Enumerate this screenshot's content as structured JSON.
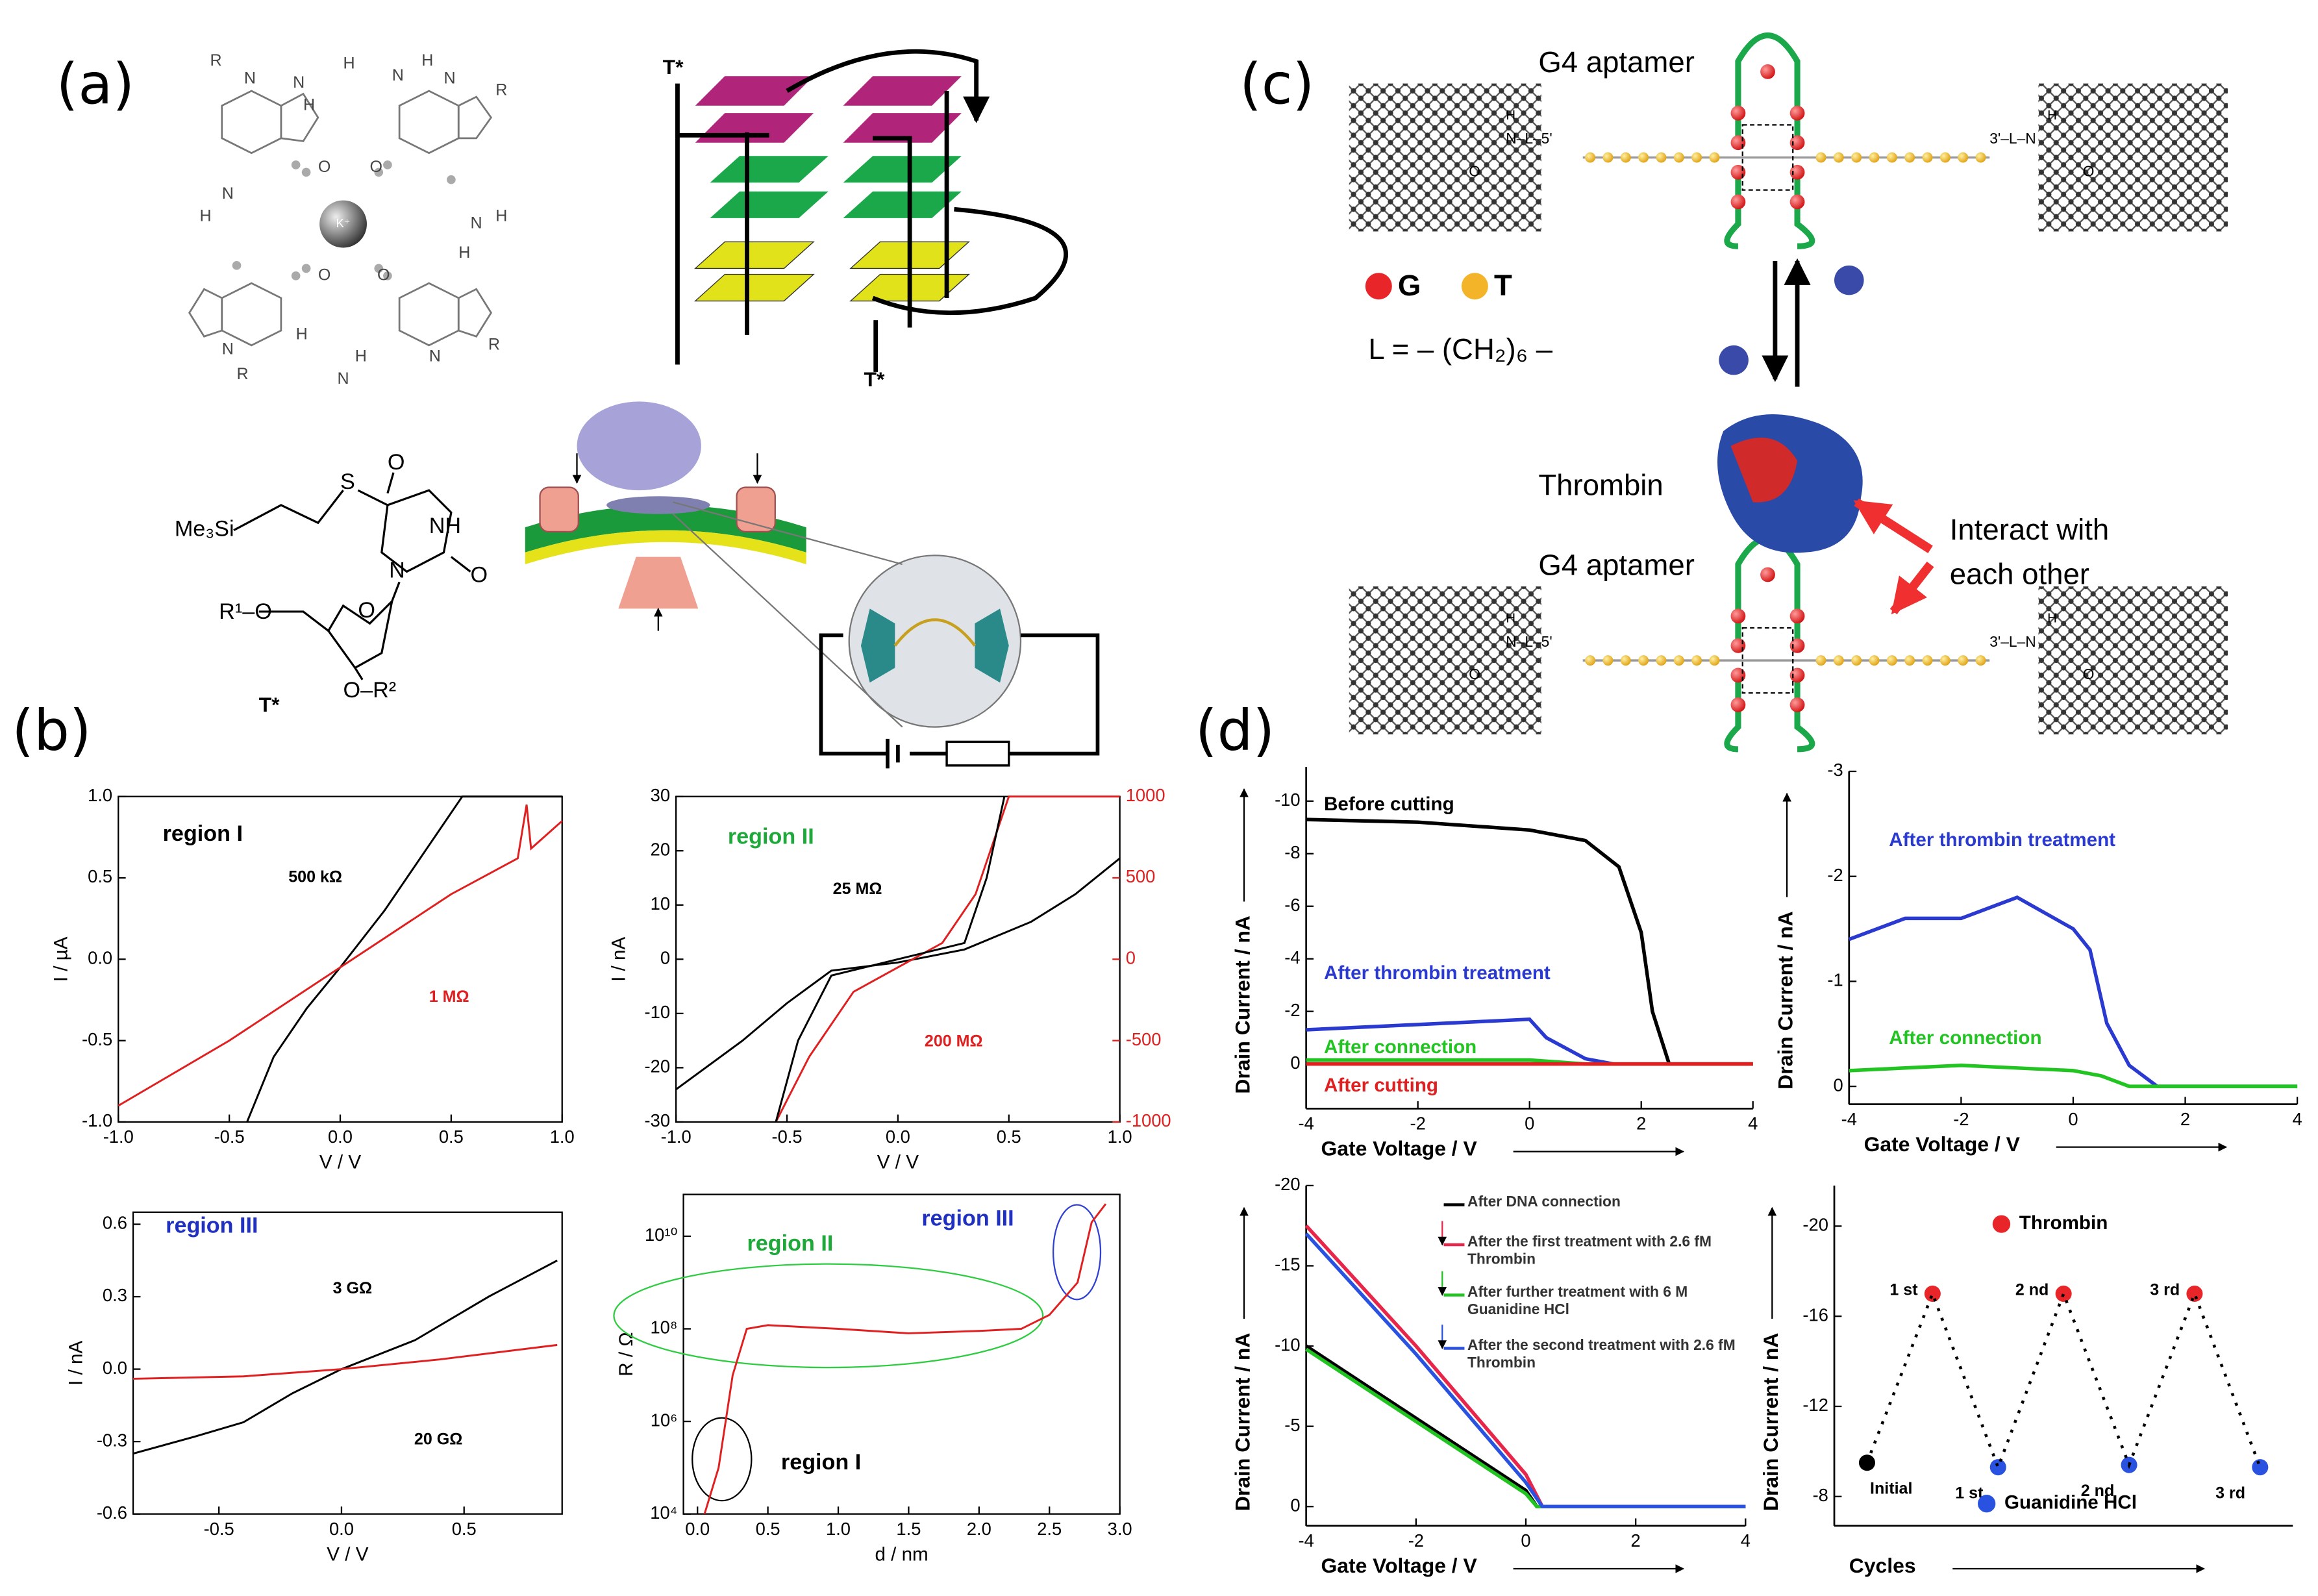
{
  "panel_labels": [
    "(a)",
    "(b)",
    "(c)",
    "(d)"
  ],
  "panel_a": {
    "k_ion": "K⁺",
    "tstar": "T*",
    "quartet_atoms": {
      "n": "N",
      "h": "H",
      "o": "O",
      "r": "R"
    },
    "nucleoside": {
      "silyl": "Me₃Si",
      "sulfur": "S",
      "imide": "NH",
      "oxygen": "O",
      "ring_n": "N",
      "r1": "R¹–O",
      "r2": "O–R²"
    }
  },
  "panel_c": {
    "aptamer_label": "G4 aptamer",
    "legend": [
      {
        "name": "G",
        "color": "#e8262a"
      },
      {
        "name": "T",
        "color": "#f3b42a"
      }
    ],
    "linker": "L = – (CH₂)₆ –",
    "protein": "Thrombin",
    "interaction": [
      "Interact with",
      "each other"
    ],
    "left_linkage": "N–L–5'",
    "right_linkage": "3'–L–N",
    "amide_atoms": {
      "h": "H",
      "o": "O"
    }
  },
  "chart_data": [
    {
      "type": "line",
      "xlabel": "V  / V",
      "ylabel": "I / µA",
      "xlim": [
        -1,
        1
      ],
      "ylim": [
        -1,
        1
      ],
      "xticks": [
        {
          "value": -1,
          "label": "-1.0"
        },
        {
          "value": -0.5,
          "label": "-0.5"
        },
        {
          "value": 0,
          "label": "0.0"
        },
        {
          "value": 0.5,
          "label": "0.5"
        },
        {
          "value": 1,
          "label": "1.0"
        }
      ],
      "yticks": [
        {
          "value": -1,
          "label": "-1.0"
        },
        {
          "value": -0.5,
          "label": "-0.5"
        },
        {
          "value": 0,
          "label": "0.0"
        },
        {
          "value": 0.5,
          "label": "0.5"
        },
        {
          "value": 1,
          "label": "1.0"
        }
      ],
      "annotations": [
        {
          "text": "region I",
          "color": "#000000"
        },
        {
          "text": "500 kΩ",
          "color": "#000000"
        },
        {
          "text": "1 MΩ",
          "color": "#e02020"
        }
      ],
      "series": [
        {
          "color": "#000000",
          "x": [
            -0.42,
            -0.3,
            -0.15,
            0,
            0.2,
            0.4,
            0.55,
            1.0
          ],
          "values": [
            -1,
            -0.6,
            -0.3,
            -0.05,
            0.3,
            0.7,
            1,
            1
          ]
        },
        {
          "color": "#e02020",
          "x": [
            -1,
            -0.5,
            0,
            0.5,
            0.8,
            0.84,
            0.86,
            1.0
          ],
          "values": [
            -0.9,
            -0.5,
            -0.05,
            0.4,
            0.62,
            0.95,
            0.68,
            0.85
          ]
        }
      ]
    },
    {
      "type": "line",
      "xlabel": "V  / V",
      "ylabel": "I / nA",
      "xlim": [
        -1,
        1
      ],
      "ylim": [
        -30,
        30
      ],
      "y2lim": [
        -1000,
        1000
      ],
      "xticks": [
        {
          "value": -1,
          "label": "-1.0"
        },
        {
          "value": -0.5,
          "label": "-0.5"
        },
        {
          "value": 0,
          "label": "0.0"
        },
        {
          "value": 0.5,
          "label": "0.5"
        },
        {
          "value": 1,
          "label": "1.0"
        }
      ],
      "yticks": [
        -30,
        -20,
        -10,
        0,
        10,
        20,
        30
      ],
      "y2ticks": [
        -1000,
        -500,
        0,
        500,
        1000
      ],
      "y2color": "#e02020",
      "annotations": [
        {
          "text": "region II",
          "color": "#1fa83a"
        },
        {
          "text": "25 MΩ",
          "color": "#000000"
        },
        {
          "text": "200 MΩ",
          "color": "#e02020"
        }
      ],
      "series": [
        {
          "color": "#000000",
          "x": [
            -1,
            -0.7,
            -0.5,
            -0.3,
            0,
            0.3,
            0.6,
            0.8,
            1
          ],
          "values": [
            -800,
            -500,
            -270,
            -70,
            -20,
            60,
            230,
            400,
            620
          ],
          "axis": "y2"
        },
        {
          "color": "#e02020",
          "x": [
            -0.55,
            -0.4,
            -0.2,
            0,
            0.2,
            0.35,
            0.45,
            0.5,
            1
          ],
          "values": [
            -1000,
            -600,
            -200,
            -50,
            100,
            400,
            800,
            1000,
            1000
          ],
          "axis": "y2"
        },
        {
          "color": "#000000",
          "x": [
            -0.55,
            -0.45,
            -0.3,
            0,
            0.3,
            0.4,
            0.48
          ],
          "values": [
            -30,
            -15,
            -3,
            0,
            3,
            15,
            30
          ]
        }
      ]
    },
    {
      "type": "line",
      "xlabel": "V  / V",
      "ylabel": "I / nA",
      "xlim": [
        -0.85,
        0.9
      ],
      "ylim": [
        -0.6,
        0.65
      ],
      "xticks": [
        {
          "value": -0.5,
          "label": "-0.5"
        },
        {
          "value": 0,
          "label": "0.0"
        },
        {
          "value": 0.5,
          "label": "0.5"
        }
      ],
      "yticks": [
        {
          "value": -0.6,
          "label": "-0.6"
        },
        {
          "value": -0.3,
          "label": "-0.3"
        },
        {
          "value": 0,
          "label": "0.0"
        },
        {
          "value": 0.3,
          "label": "0.3"
        },
        {
          "value": 0.6,
          "label": "0.6"
        }
      ],
      "annotations": [
        {
          "text": "region III",
          "color": "#2030c0"
        },
        {
          "text": "3 GΩ",
          "color": "#000000"
        },
        {
          "text": "20 GΩ",
          "color": "#000000"
        }
      ],
      "series": [
        {
          "color": "#000000",
          "x": [
            -0.85,
            -0.6,
            -0.4,
            -0.2,
            0,
            0.3,
            0.6,
            0.88
          ],
          "values": [
            -0.35,
            -0.28,
            -0.22,
            -0.1,
            0,
            0.12,
            0.3,
            0.45
          ]
        },
        {
          "color": "#e02020",
          "x": [
            -0.85,
            -0.4,
            0,
            0.4,
            0.88
          ],
          "values": [
            -0.04,
            -0.03,
            0,
            0.04,
            0.1
          ]
        }
      ]
    },
    {
      "type": "line",
      "xlabel": "d / nm",
      "ylabel": "R / Ω",
      "yscale": "log",
      "xlim": [
        -0.1,
        3.0
      ],
      "ylim": [
        10000,
        80000000000
      ],
      "xticks": [
        {
          "value": 0,
          "label": "0.0"
        },
        {
          "value": 0.5,
          "label": "0.5"
        },
        {
          "value": 1,
          "label": "1.0"
        },
        {
          "value": 1.5,
          "label": "1.5"
        },
        {
          "value": 2,
          "label": "2.0"
        },
        {
          "value": 2.5,
          "label": "2.5"
        },
        {
          "value": 3,
          "label": "3.0"
        }
      ],
      "yticks": [
        {
          "value": 10000,
          "label": "10⁴"
        },
        {
          "value": 1000000,
          "label": "10⁶"
        },
        {
          "value": 100000000,
          "label": "10⁸"
        },
        {
          "value": 10000000000,
          "label": "10¹⁰"
        }
      ],
      "annotations": [
        {
          "text": "region II",
          "color": "#1fa83a"
        },
        {
          "text": "region III",
          "color": "#2030c0"
        },
        {
          "text": "region I",
          "color": "#000000"
        }
      ],
      "series": [
        {
          "color": "#e02020",
          "x": [
            0.05,
            0.15,
            0.25,
            0.35,
            0.5,
            1,
            1.5,
            2,
            2.3,
            2.5,
            2.7,
            2.8,
            2.9
          ],
          "values": [
            10000,
            100000,
            10000000,
            100000000,
            120000000,
            100000000,
            80000000,
            90000000,
            100000000,
            200000000,
            1000000000,
            20000000000,
            50000000000
          ]
        }
      ]
    },
    {
      "type": "line",
      "xlabel": "Gate Voltage / V",
      "ylabel": "Drain Current / nA",
      "xlim": [
        -4,
        4
      ],
      "ylim": [
        1.7,
        -11.3
      ],
      "xticks": [
        -4,
        -2,
        0,
        2,
        4
      ],
      "yticks": [
        -10,
        -8,
        -6,
        -4,
        -2,
        0
      ],
      "series": [
        {
          "name": "Before cutting",
          "color": "#000000",
          "x": [
            -4,
            -2,
            0,
            1,
            1.6,
            2,
            2.2,
            2.5,
            4
          ],
          "values": [
            -9.3,
            -9.2,
            -8.9,
            -8.5,
            -7.5,
            -5,
            -2,
            0,
            0
          ]
        },
        {
          "name": "After thrombin treatment",
          "color": "#2a3ad0",
          "x": [
            -4,
            -2,
            0,
            0.3,
            1,
            1.5,
            4
          ],
          "values": [
            -1.3,
            -1.5,
            -1.7,
            -1,
            -0.2,
            0,
            0
          ]
        },
        {
          "name": "After connection",
          "color": "#22c422",
          "x": [
            -4,
            0,
            1,
            4
          ],
          "values": [
            -0.15,
            -0.15,
            0,
            0
          ]
        },
        {
          "name": "After cutting",
          "color": "#e02020",
          "x": [
            -4,
            4
          ],
          "values": [
            0,
            0
          ]
        }
      ]
    },
    {
      "type": "line",
      "xlabel": "Gate Voltage / V",
      "ylabel": "Drain Current / nA",
      "xlim": [
        -4,
        4
      ],
      "ylim": [
        0.17,
        -3
      ],
      "xticks": [
        -4,
        -2,
        0,
        2,
        4
      ],
      "yticks": [
        -3,
        -2,
        -1,
        0
      ],
      "series": [
        {
          "name": "After thrombin treatment",
          "color": "#2a3ad0",
          "x": [
            -4,
            -3,
            -2,
            -1,
            0,
            0.3,
            0.6,
            1,
            1.5,
            4
          ],
          "values": [
            -1.4,
            -1.6,
            -1.6,
            -1.8,
            -1.5,
            -1.3,
            -0.6,
            -0.2,
            0,
            0
          ]
        },
        {
          "name": "After connection",
          "color": "#22c422",
          "x": [
            -4,
            -2,
            0,
            0.5,
            1,
            4
          ],
          "values": [
            -0.15,
            -0.2,
            -0.15,
            -0.1,
            0,
            0
          ]
        }
      ]
    },
    {
      "type": "line",
      "xlabel": "Gate Voltage / V",
      "ylabel": "Drain Current / nA",
      "xlim": [
        -4,
        4
      ],
      "ylim": [
        1.2,
        -20
      ],
      "xticks": [
        -4,
        -2,
        0,
        2,
        4
      ],
      "yticks": [
        -20,
        -15,
        -10,
        -5,
        0
      ],
      "series": [
        {
          "name": "After DNA connection",
          "color": "#000000",
          "x": [
            -4,
            -2,
            0,
            0.2,
            4
          ],
          "values": [
            -10,
            -5.5,
            -1,
            0,
            0
          ]
        },
        {
          "name": "After the first treatment with 2.6 fM Thrombin",
          "color": "#e8264a",
          "x": [
            -4,
            -2,
            0,
            0.3,
            4
          ],
          "values": [
            -17.5,
            -10,
            -2,
            0,
            0
          ]
        },
        {
          "name": "After further treatment with 6 M Guanidine HCl",
          "color": "#22c422",
          "x": [
            -4,
            -2,
            0,
            0.2,
            4
          ],
          "values": [
            -9.8,
            -5.3,
            -0.8,
            0,
            0
          ]
        },
        {
          "name": "After the second treatment with 2.6 fM Thrombin",
          "color": "#2a52e0",
          "x": [
            -4,
            -2,
            0,
            0.3,
            4
          ],
          "values": [
            -17,
            -9.5,
            -1.5,
            0,
            0
          ]
        }
      ]
    },
    {
      "type": "scatter",
      "xlabel": "Cycles",
      "ylabel": "Drain Current / nA",
      "xlim": [
        -0.5,
        6.5
      ],
      "ylim": [
        -6.7,
        -21.8
      ],
      "yticks": [
        -20,
        -16,
        -12,
        -8
      ],
      "series": [
        {
          "color": "#000000",
          "x": [
            0
          ],
          "values": [
            -9.5
          ],
          "point_labels": [
            "Initial"
          ]
        },
        {
          "name": "Thrombin",
          "color": "#e8262a",
          "x": [
            1,
            3,
            5
          ],
          "values": [
            -17,
            -17,
            -17
          ],
          "point_labels": [
            "1 st",
            "2 nd",
            "3 rd"
          ]
        },
        {
          "name": "Guanidine HCl",
          "color": "#2a52e0",
          "x": [
            2,
            4,
            6
          ],
          "values": [
            -9.3,
            -9.4,
            -9.3
          ],
          "point_labels": [
            "1 st",
            "2 nd",
            "3 rd"
          ]
        }
      ]
    }
  ]
}
